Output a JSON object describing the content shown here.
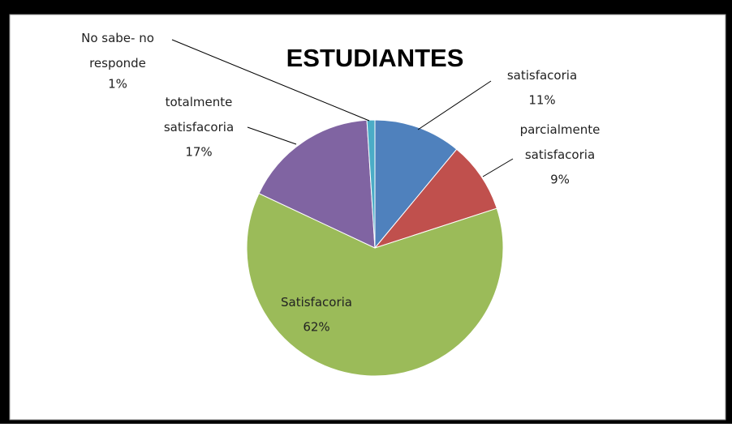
{
  "chart_data": {
    "type": "pie",
    "title": "ESTUDIANTES",
    "categories": [
      "satisfacoria",
      "parcialmente satisfacoria",
      "Satisfacoria",
      "totalmente satisfacoria",
      "No sabe- no responde"
    ],
    "values": [
      11,
      9,
      62,
      17,
      1
    ],
    "value_labels": [
      "11%",
      "9%",
      "62%",
      "17%",
      "1%"
    ],
    "colors": [
      "#4f81bd",
      "#c0504d",
      "#9bbb59",
      "#8064a2",
      "#4bacc6"
    ]
  }
}
